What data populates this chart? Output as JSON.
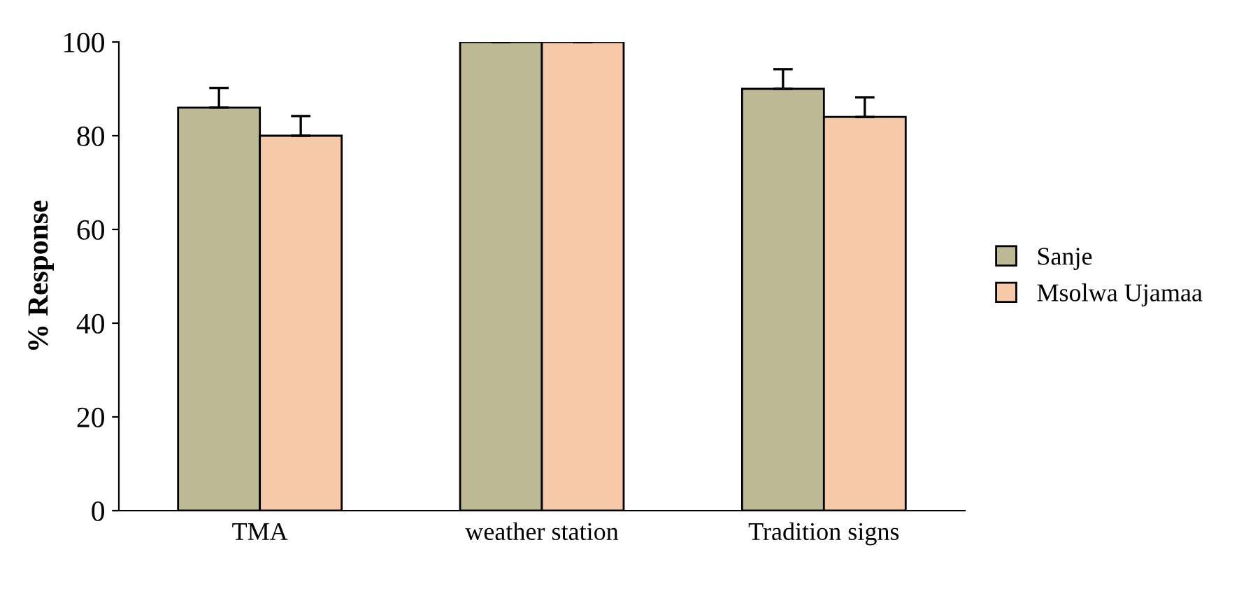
{
  "chart_data": {
    "type": "bar",
    "ylabel": "% Response",
    "categories": [
      "TMA",
      "weather station",
      "Tradition signs"
    ],
    "series": [
      {
        "name": "Sanje",
        "color": "#bdb995",
        "values": [
          86,
          100,
          90
        ],
        "errors": [
          [
            86,
            90.2
          ],
          [
            100,
            100
          ],
          [
            90,
            94.2
          ]
        ]
      },
      {
        "name": "Msolwa Ujamaa",
        "color": "#f6c9a9",
        "values": [
          80,
          100,
          84
        ],
        "errors": [
          [
            80,
            84.2
          ],
          [
            100,
            100
          ],
          [
            84,
            88.2
          ]
        ]
      }
    ],
    "ylim": [
      0,
      100
    ],
    "yticks": [
      0,
      20,
      40,
      60,
      80,
      100
    ],
    "grid": false,
    "legend": "right"
  }
}
